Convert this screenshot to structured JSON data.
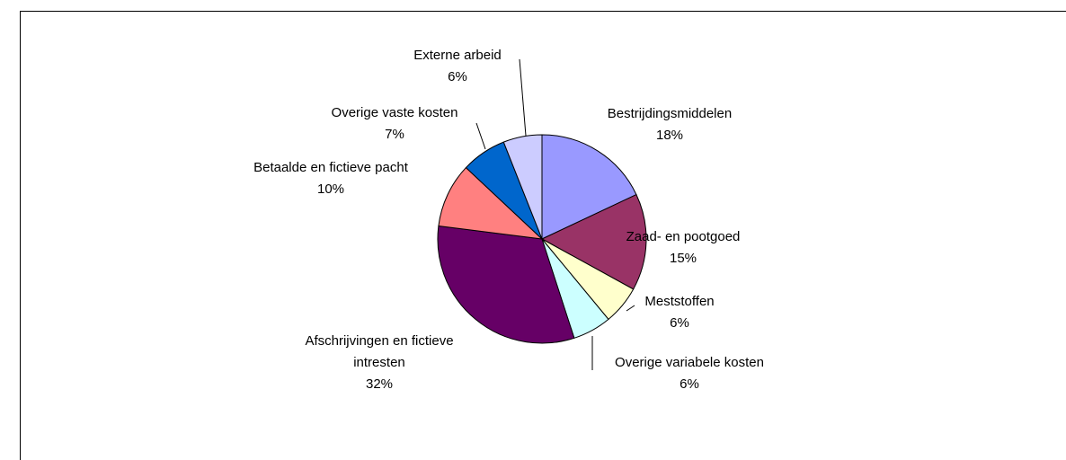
{
  "chart_data": {
    "type": "pie",
    "categories": [
      "Bestrijdingsmiddelen",
      "Zaad- en pootgoed",
      "Meststoffen",
      "Overige variabele kosten",
      "Afschrijvingen en fictieve intresten",
      "Betaalde en fictieve pacht",
      "Overige vaste kosten",
      "Externe arbeid"
    ],
    "values": [
      18,
      15,
      6,
      6,
      32,
      10,
      7,
      6
    ],
    "value_labels": [
      "18%",
      "15%",
      "6%",
      "6%",
      "32%",
      "10%",
      "7%",
      "6%"
    ],
    "colors": [
      "#9999ff",
      "#993366",
      "#ffffcc",
      "#ccffff",
      "#660066",
      "#ff8080",
      "#0066cc",
      "#ccccff"
    ]
  }
}
